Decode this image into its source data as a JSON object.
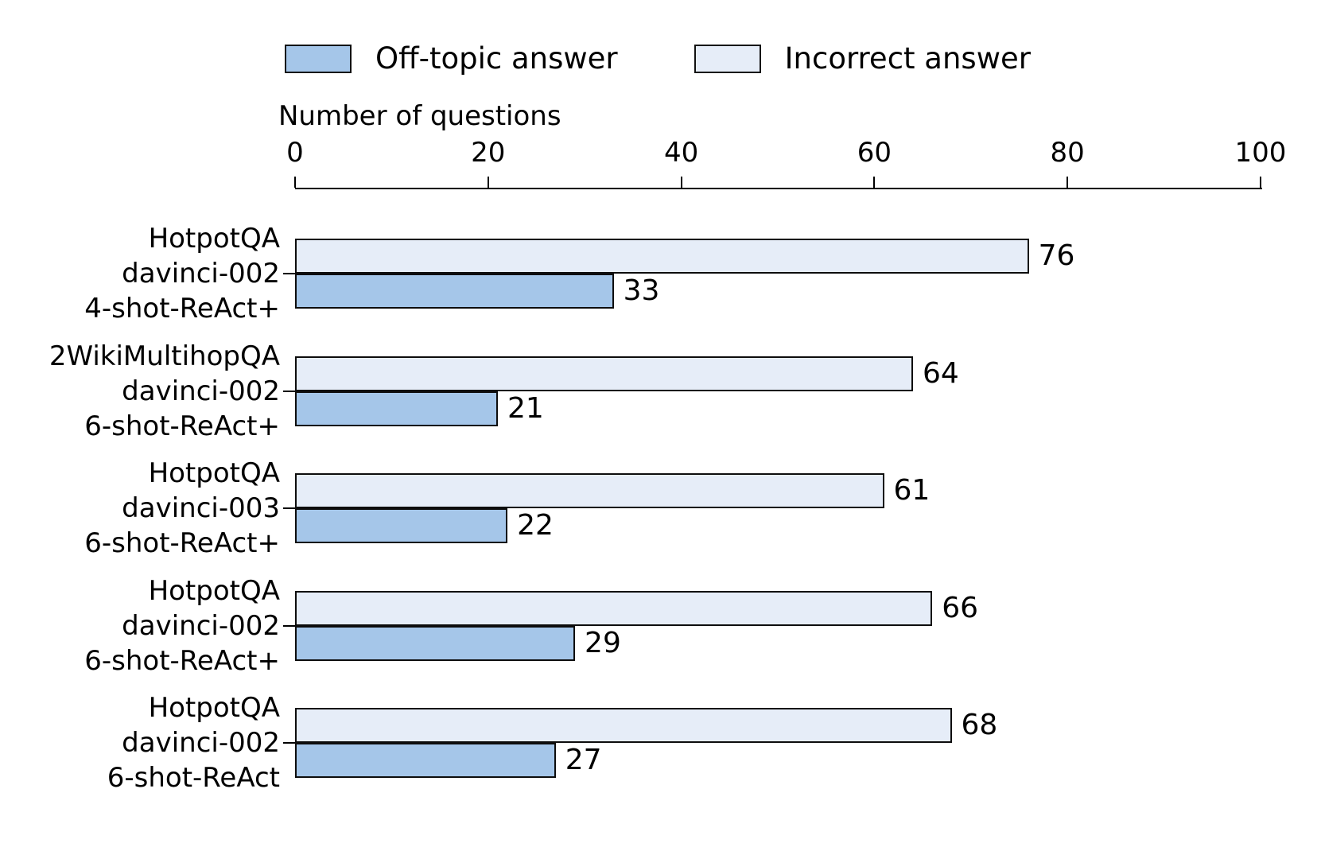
{
  "legend": {
    "items": [
      {
        "label": "Off-topic answer",
        "color": "#a5c6e9"
      },
      {
        "label": "Incorrect answer",
        "color": "#e6edf8"
      }
    ]
  },
  "axis": {
    "title": "Number of questions"
  },
  "chart_data": {
    "type": "bar",
    "orientation": "horizontal",
    "title": "",
    "xlabel": "Number of questions",
    "ylabel": "",
    "xlim": [
      0,
      100
    ],
    "x_ticks": [
      0,
      20,
      40,
      60,
      80,
      100
    ],
    "grid": false,
    "legend_position": "top",
    "axis_position": "top",
    "categories": [
      [
        "HotpotQA",
        "davinci-002",
        "4-shot-ReAct+"
      ],
      [
        "2WikiMultihopQA",
        "davinci-002",
        "6-shot-ReAct+"
      ],
      [
        "HotpotQA",
        "davinci-003",
        "6-shot-ReAct+"
      ],
      [
        "HotpotQA",
        "davinci-002",
        "6-shot-ReAct+"
      ],
      [
        "HotpotQA",
        "davinci-002",
        "6-shot-ReAct"
      ]
    ],
    "series": [
      {
        "name": "Incorrect answer",
        "color": "#e6edf8",
        "values": [
          76,
          64,
          61,
          66,
          68
        ]
      },
      {
        "name": "Off-topic answer",
        "color": "#a5c6e9",
        "values": [
          33,
          21,
          22,
          29,
          27
        ]
      }
    ],
    "bar_row_order_top_to_bottom": [
      "Incorrect answer",
      "Off-topic answer"
    ],
    "value_labels_shown": true
  }
}
